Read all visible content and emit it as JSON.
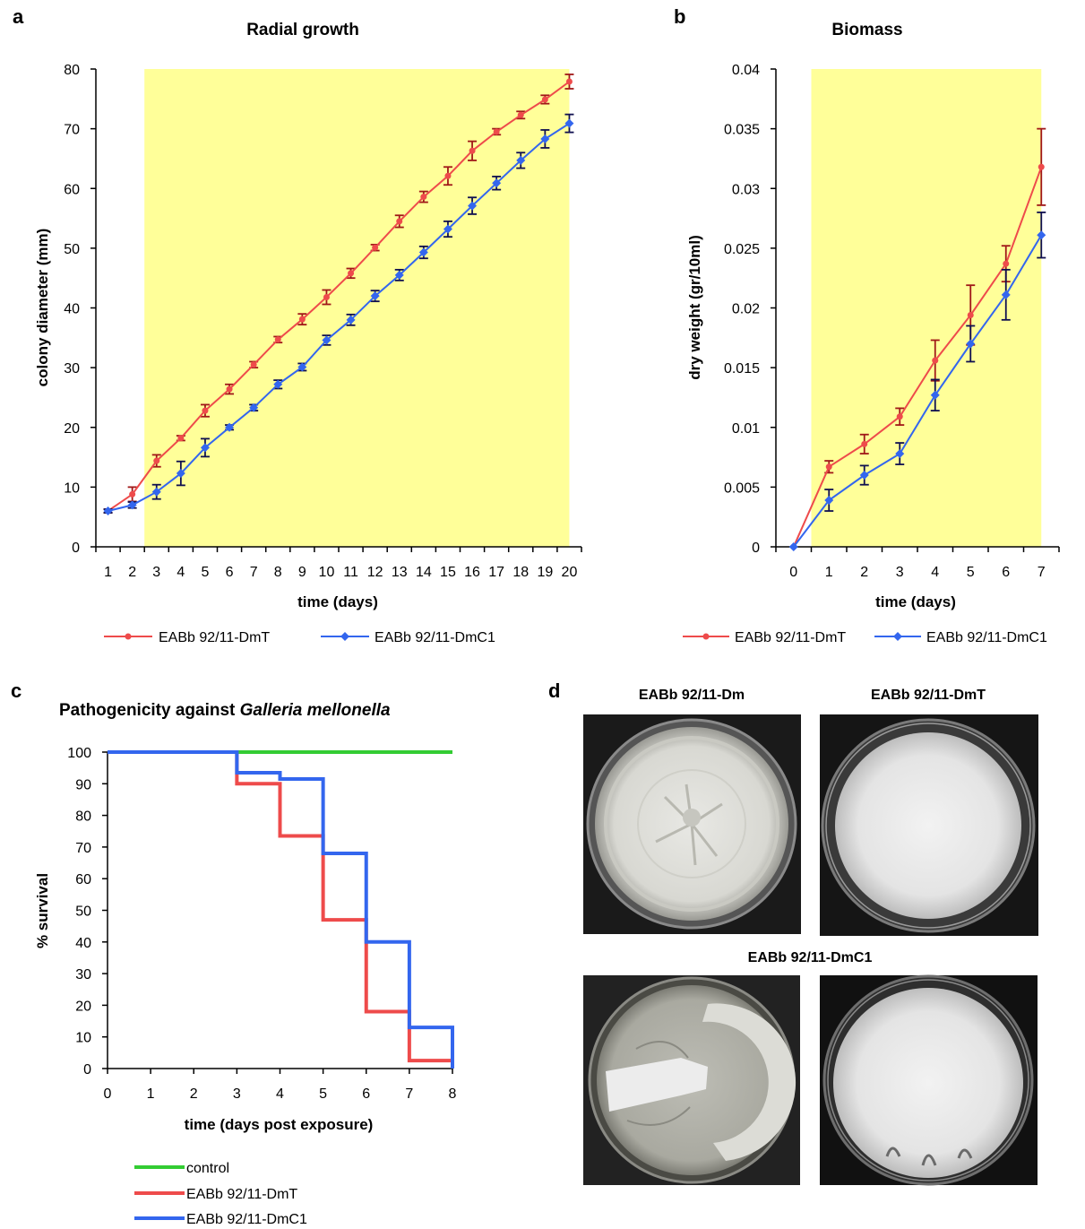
{
  "panels": {
    "a": {
      "letter": "a"
    },
    "b": {
      "letter": "b"
    },
    "c": {
      "letter": "c"
    },
    "d": {
      "letter": "d"
    }
  },
  "colors": {
    "red": "#ee4b4b",
    "red_err": "#a01818",
    "blue": "#3366ee",
    "blue_err": "#101050",
    "green": "#33cc33",
    "highlight": "#ffff99"
  },
  "chart_data": [
    {
      "id": "a",
      "type": "line",
      "title": "Radial growth",
      "xlabel": "time (days)",
      "ylabel": "colony diameter (mm)",
      "x": [
        1,
        2,
        3,
        4,
        5,
        6,
        7,
        8,
        9,
        10,
        11,
        12,
        13,
        14,
        15,
        16,
        17,
        18,
        19,
        20
      ],
      "xlim": [
        1,
        20
      ],
      "ylim": [
        0,
        80
      ],
      "yticks": [
        0,
        10,
        20,
        30,
        40,
        50,
        60,
        70,
        80
      ],
      "highlight_x_from": 2.5,
      "series": [
        {
          "name": "EABb 92/11-DmT",
          "color": "#ee4b4b",
          "marker": "circle",
          "values": [
            6,
            8.8,
            14.4,
            18.2,
            22.8,
            26.4,
            30.5,
            34.7,
            38.1,
            41.8,
            45.8,
            50.1,
            54.5,
            58.6,
            62.1,
            66.3,
            69.5,
            72.3,
            74.9,
            77.9
          ],
          "errors": [
            0.3,
            1.2,
            1.0,
            0.4,
            1.0,
            0.8,
            0.5,
            0.5,
            0.9,
            1.2,
            0.8,
            0.5,
            1.0,
            0.9,
            1.5,
            1.6,
            0.5,
            0.6,
            0.7,
            1.2
          ]
        },
        {
          "name": "EABb 92/11-DmC1",
          "color": "#3366ee",
          "marker": "diamond",
          "values": [
            6,
            7,
            9.2,
            12.3,
            16.6,
            20,
            23.3,
            27.2,
            30.1,
            34.6,
            38,
            42,
            45.5,
            49.3,
            53.2,
            57.1,
            60.9,
            64.7,
            68.3,
            70.9
          ],
          "errors": [
            0.3,
            0.5,
            1.2,
            2.0,
            1.5,
            0.4,
            0.5,
            0.7,
            0.6,
            0.8,
            0.9,
            0.9,
            0.9,
            1.0,
            1.3,
            1.4,
            1.1,
            1.3,
            1.5,
            1.5
          ]
        }
      ]
    },
    {
      "id": "b",
      "type": "line",
      "title": "Biomass",
      "xlabel": "time (days)",
      "ylabel": "dry weight (gr/10ml)",
      "x": [
        0,
        1,
        2,
        3,
        4,
        5,
        6,
        7
      ],
      "xlim": [
        0,
        7
      ],
      "ylim": [
        0,
        0.04
      ],
      "yticks": [
        "0",
        "0.005",
        "0.01",
        "0.015",
        "0.02",
        "0.025",
        "0.03",
        "0.035",
        "0.04"
      ],
      "highlight_x_from": 0.5,
      "series": [
        {
          "name": "EABb 92/11-DmT",
          "color": "#ee4b4b",
          "marker": "circle",
          "values": [
            0,
            0.0067,
            0.0086,
            0.0109,
            0.0156,
            0.0194,
            0.0237,
            0.0318
          ],
          "errors": [
            0,
            0.0005,
            0.0008,
            0.0007,
            0.0017,
            0.0025,
            0.0015,
            0.0032
          ]
        },
        {
          "name": "EABb 92/11-DmC1",
          "color": "#3366ee",
          "marker": "diamond",
          "values": [
            0,
            0.0039,
            0.006,
            0.0078,
            0.0127,
            0.017,
            0.0211,
            0.0261
          ],
          "errors": [
            0,
            0.0009,
            0.0008,
            0.0009,
            0.0013,
            0.0015,
            0.0021,
            0.0019
          ]
        }
      ]
    },
    {
      "id": "c",
      "type": "line",
      "title_plain": "Pathogenicity against ",
      "title_italic": "Galleria mellonella",
      "xlabel": "time (days post exposure)",
      "ylabel": "% survival",
      "xlim": [
        0,
        8
      ],
      "ylim": [
        0,
        100
      ],
      "xticks": [
        0,
        1,
        2,
        3,
        4,
        5,
        6,
        7,
        8
      ],
      "yticks": [
        0,
        10,
        20,
        30,
        40,
        50,
        60,
        70,
        80,
        90,
        100
      ],
      "step": true,
      "series": [
        {
          "name": "control",
          "color": "#33cc33",
          "x": [
            0,
            8
          ],
          "values": [
            100,
            100
          ]
        },
        {
          "name": "EABb 92/11-DmT",
          "color": "#ee4b4b",
          "x": [
            0,
            3,
            4,
            5,
            6,
            7,
            8
          ],
          "values": [
            100,
            90,
            73.5,
            47,
            18,
            2.5,
            0
          ]
        },
        {
          "name": "EABb 92/11-DmC1",
          "color": "#3366ee",
          "x": [
            0,
            3,
            3.3,
            4,
            5,
            6,
            7,
            8
          ],
          "values": [
            100,
            93.5,
            93.5,
            91.5,
            68,
            40,
            13,
            0
          ]
        }
      ]
    }
  ],
  "photos": {
    "top_left_label": "EABb 92/11-Dm",
    "top_right_label": "EABb 92/11-DmT",
    "bottom_label": "EABb 92/11-DmC1"
  }
}
